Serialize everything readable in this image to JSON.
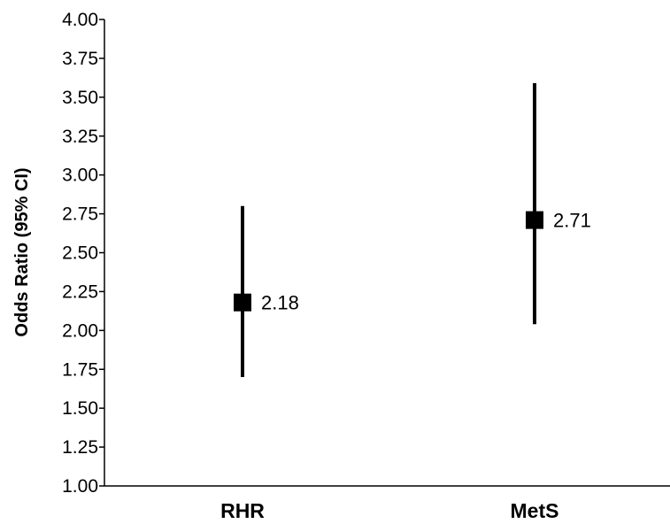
{
  "chart_data": {
    "type": "scatter",
    "title": "",
    "xlabel": "",
    "ylabel": "Odds Ratio (95% CI)",
    "categories": [
      "RHR",
      "MetS"
    ],
    "series": [
      {
        "values": [
          2.18,
          2.71
        ],
        "lower": [
          1.7,
          2.04
        ],
        "upper": [
          2.8,
          3.59
        ],
        "labels": [
          "2.18",
          "2.71"
        ]
      }
    ],
    "ylim": [
      1.0,
      4.0
    ],
    "yticks": [
      "1.00",
      "1.25",
      "1.50",
      "1.75",
      "2.00",
      "2.25",
      "2.50",
      "2.75",
      "3.00",
      "3.25",
      "3.50",
      "3.75",
      "4.00"
    ],
    "grid": false,
    "legend": "none",
    "colors": {
      "marker": "#000000",
      "axis": "#000000"
    }
  }
}
